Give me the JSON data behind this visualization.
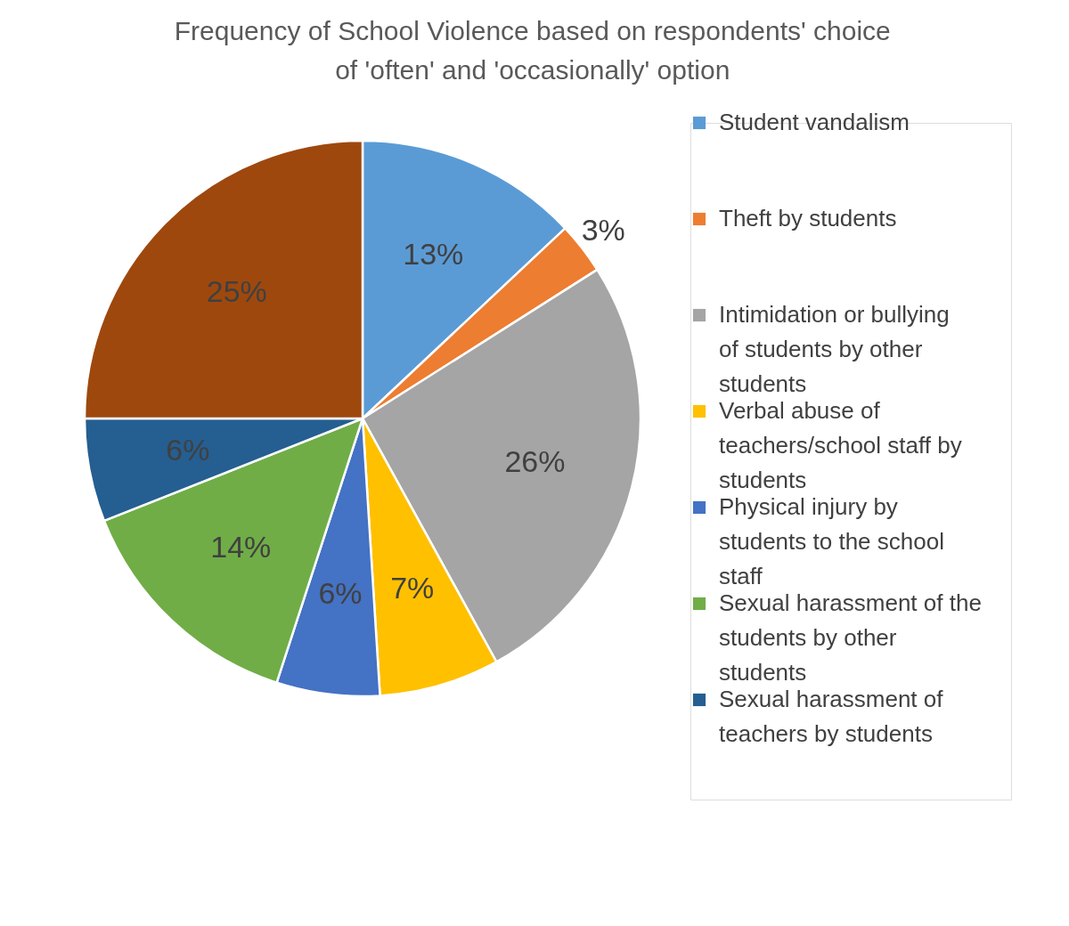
{
  "chart_data": {
    "type": "pie",
    "title": "Frequency of School Violence based on respondents' choice of 'often' and 'occasionally' option",
    "categories": [
      "Student vandalism",
      "Theft by students",
      "Intimidation or bullying of students by other students",
      "Verbal abuse of teachers/school staff by students",
      "Physical injury by students to the school staff",
      "Sexual harassment of the students by other students",
      "Sexual harassment of teachers by students",
      null
    ],
    "values": [
      13,
      3,
      26,
      7,
      6,
      14,
      6,
      25
    ],
    "value_labels": [
      "13%",
      "3%",
      "26%",
      "7%",
      "6%",
      "14%",
      "6%",
      "25%"
    ],
    "colors": [
      "#5b9bd5",
      "#ed7d31",
      "#a5a5a5",
      "#ffc000",
      "#4472c4",
      "#70ad47",
      "#255e91",
      "#9e480e"
    ],
    "legend": "right"
  }
}
